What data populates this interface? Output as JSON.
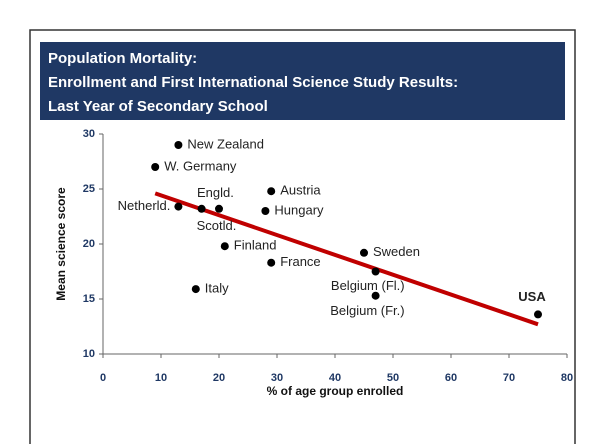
{
  "chart_data": {
    "type": "scatter",
    "title": [
      "Population Mortality:",
      "Enrollment and First International Science Study Results:",
      "Last Year of Secondary School"
    ],
    "x_label": "% of age group enrolled",
    "y_label": "Mean science score",
    "labels": [
      "New Zealand",
      "W. Germany",
      "Austria",
      "Engld.",
      "Netherld.",
      "Scotld.",
      "Hungary",
      "Finland",
      "France",
      "Sweden",
      "Belgium (Fl.)",
      "Belgium (Fr.)",
      "Italy",
      "USA"
    ],
    "x": [
      13,
      9,
      29,
      20,
      13,
      17,
      28,
      21,
      29,
      45,
      47,
      47,
      16,
      75
    ],
    "values": [
      29.0,
      27.0,
      24.8,
      23.2,
      23.4,
      23.2,
      23.0,
      19.8,
      18.3,
      19.2,
      17.5,
      15.3,
      15.9,
      13.6
    ],
    "color": "#000000",
    "trend_line": {
      "x": [
        9,
        75
      ],
      "y": [
        24.6,
        12.7
      ],
      "color": "#c00000"
    },
    "xlim": [
      0,
      80
    ],
    "xticks": [
      0,
      10,
      20,
      30,
      40,
      50,
      60,
      70,
      80
    ],
    "ylim": [
      10,
      30
    ],
    "yticks": [
      10,
      15,
      20,
      25,
      30
    ],
    "grid": false
  }
}
